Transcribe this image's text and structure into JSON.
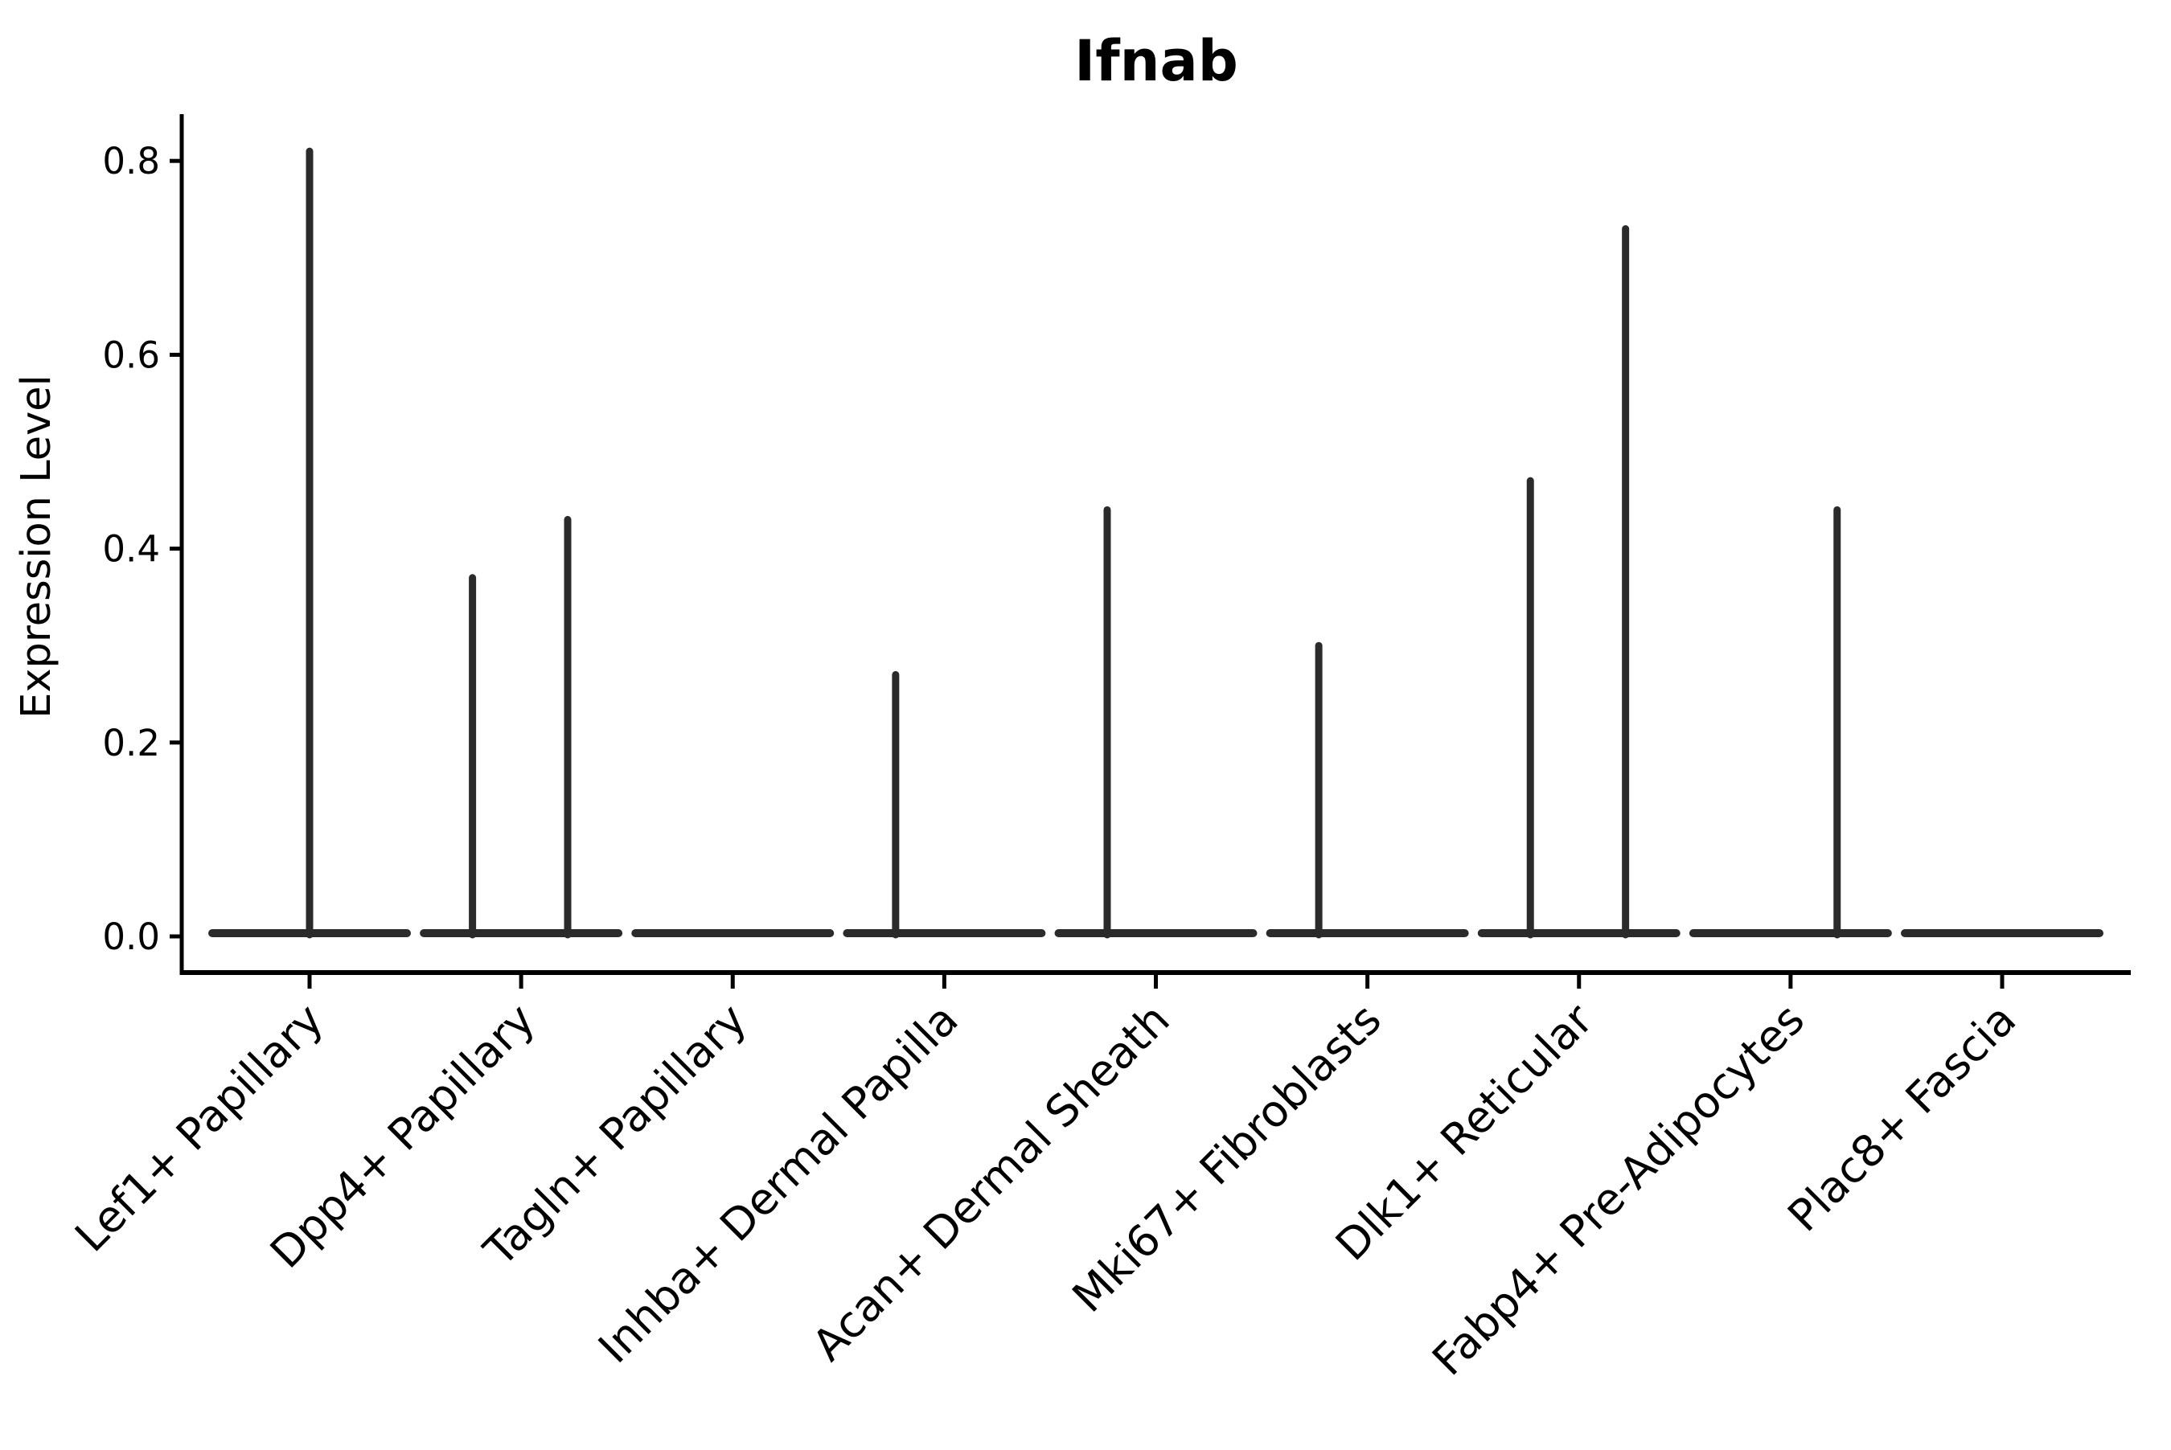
{
  "chart_data": {
    "type": "violin",
    "title": "Ifnab",
    "xlabel": "",
    "ylabel": "Expression Level",
    "ylim": [
      -0.037,
      0.848
    ],
    "yticks": [
      0.0,
      0.2,
      0.4,
      0.6,
      0.8
    ],
    "x_tick_rotation_deg": 45,
    "grid": false,
    "legend": "none",
    "spines": [
      "left",
      "bottom"
    ],
    "violin_line_color": "#2b2b2b",
    "axis_color": "#000000",
    "background_color": "#ffffff",
    "categories": [
      "Lef1+ Papillary",
      "Dpp4+ Papillary",
      "Tagln+ Papillary",
      "Inhba+ Dermal Papilla",
      "Acan+ Dermal Sheath",
      "Mki67+ Fibroblasts",
      "Dlk1+ Reticular",
      "Fabp4+ Pre-Adipocytes",
      "Plac8+ Fascia"
    ],
    "violins": [
      {
        "category": "Lef1+ Papillary",
        "body_value": 0.0,
        "spikes": [
          {
            "offset_frac": 0.0,
            "max": 0.81
          }
        ]
      },
      {
        "category": "Dpp4+ Papillary",
        "body_value": 0.0,
        "spikes": [
          {
            "offset_frac": -0.23,
            "max": 0.37
          },
          {
            "offset_frac": 0.22,
            "max": 0.43
          }
        ]
      },
      {
        "category": "Tagln+ Papillary",
        "body_value": 0.0,
        "spikes": []
      },
      {
        "category": "Inhba+ Dermal Papilla",
        "body_value": 0.0,
        "spikes": [
          {
            "offset_frac": -0.23,
            "max": 0.27
          }
        ]
      },
      {
        "category": "Acan+ Dermal Sheath",
        "body_value": 0.0,
        "spikes": [
          {
            "offset_frac": -0.23,
            "max": 0.44
          }
        ]
      },
      {
        "category": "Mki67+ Fibroblasts",
        "body_value": 0.0,
        "spikes": [
          {
            "offset_frac": -0.23,
            "max": 0.3
          }
        ]
      },
      {
        "category": "Dlk1+ Reticular",
        "body_value": 0.0,
        "spikes": [
          {
            "offset_frac": -0.23,
            "max": 0.47
          },
          {
            "offset_frac": 0.22,
            "max": 0.73
          }
        ]
      },
      {
        "category": "Fabp4+ Pre-Adipocytes",
        "body_value": 0.0,
        "spikes": [
          {
            "offset_frac": 0.22,
            "max": 0.44
          }
        ]
      },
      {
        "category": "Plac8+ Fascia",
        "body_value": 0.0,
        "spikes": []
      }
    ]
  }
}
